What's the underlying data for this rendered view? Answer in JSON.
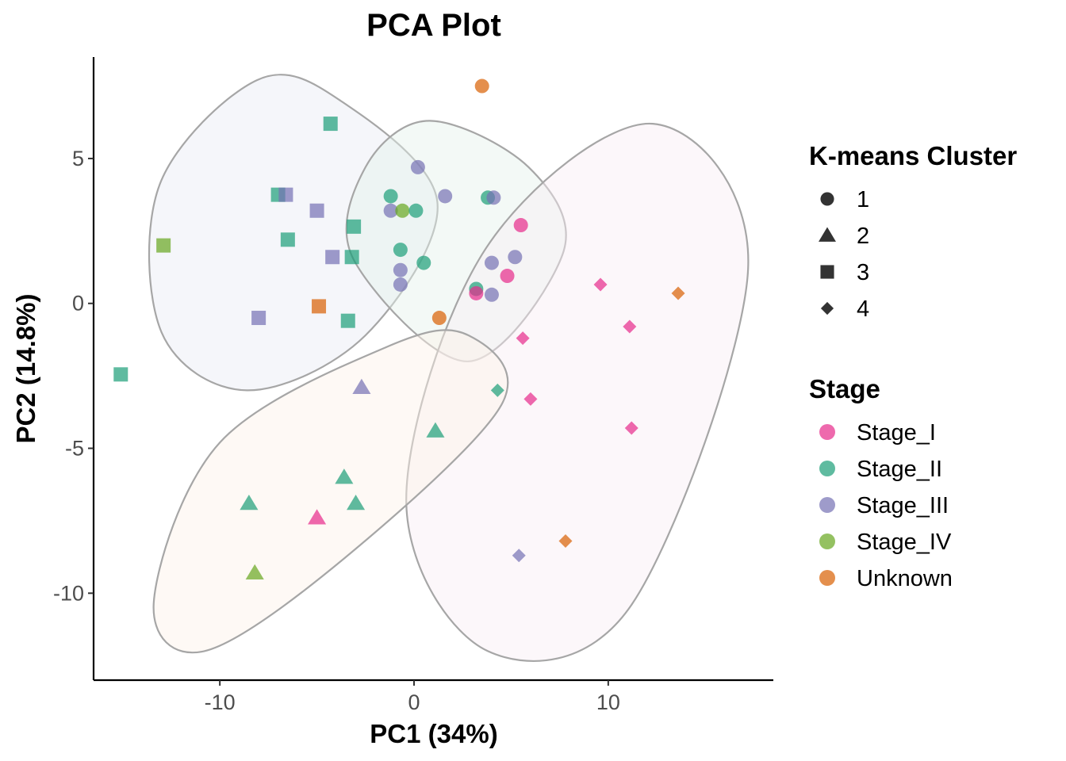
{
  "chart_data": {
    "type": "scatter",
    "title": "PCA Plot",
    "xlabel": "PC1 (34%)",
    "ylabel": "PC2 (14.8%)",
    "xlim": [
      -16.5,
      18.5
    ],
    "ylim": [
      -13,
      8.5
    ],
    "xticks": [
      {
        "value": -10,
        "label": "-10"
      },
      {
        "value": 0,
        "label": "0"
      },
      {
        "value": 10,
        "label": "10"
      }
    ],
    "yticks": [
      {
        "value": 5,
        "label": "5"
      },
      {
        "value": 0,
        "label": "0"
      },
      {
        "value": -5,
        "label": "-5"
      },
      {
        "value": -10,
        "label": "-10"
      }
    ],
    "grid": false,
    "legend_position": "right",
    "shape_legend": {
      "title": "K-means Cluster",
      "items": [
        {
          "label": "1",
          "shape": "circle"
        },
        {
          "label": "2",
          "shape": "triangle"
        },
        {
          "label": "3",
          "shape": "square"
        },
        {
          "label": "4",
          "shape": "diamond"
        }
      ]
    },
    "color_legend": {
      "title": "Stage",
      "items": [
        {
          "label": "Stage_I",
          "color": "#e7298a"
        },
        {
          "label": "Stage_II",
          "color": "#1b9e77"
        },
        {
          "label": "Stage_III",
          "color": "#7570b3"
        },
        {
          "label": "Stage_IV",
          "color": "#66a61e"
        },
        {
          "label": "Unknown",
          "color": "#d95f02"
        }
      ]
    },
    "ellipses": [
      {
        "cluster": "3",
        "fill": "#e9ecf5",
        "points": [
          [
            -8.6,
            -3.0
          ],
          [
            -13.0,
            -1.0
          ],
          [
            -13.1,
            4.1
          ],
          [
            -8.1,
            7.7
          ],
          [
            -3.8,
            7.0
          ],
          [
            1.2,
            3.5
          ],
          [
            -2.5,
            -1.1
          ]
        ]
      },
      {
        "cluster": "1",
        "fill": "#e4f1ec",
        "points": [
          [
            2.8,
            -2.0
          ],
          [
            -3.1,
            1.5
          ],
          [
            -2.5,
            4.7
          ],
          [
            0.8,
            6.3
          ],
          [
            5.9,
            4.7
          ],
          [
            7.7,
            1.8
          ]
        ]
      },
      {
        "cluster": "4",
        "fill": "#f8eef5",
        "points": [
          [
            3.8,
            -12.0
          ],
          [
            -0.4,
            -6.8
          ],
          [
            3.7,
            1.9
          ],
          [
            12.3,
            6.2
          ],
          [
            17.2,
            1.2
          ],
          [
            11.2,
            -10.4
          ]
        ]
      },
      {
        "cluster": "2",
        "fill": "#fdf1e8",
        "points": [
          [
            -10.8,
            -12.0
          ],
          [
            -13.4,
            -10.3
          ],
          [
            -10.0,
            -4.8
          ],
          [
            -1.4,
            -1.5
          ],
          [
            2.8,
            -1.1
          ],
          [
            4.5,
            -3.5
          ],
          [
            -3.6,
            -8.8
          ]
        ]
      }
    ],
    "series": [
      {
        "cluster": "1",
        "shape": "circle",
        "points": [
          {
            "x": 3.5,
            "y": 7.5,
            "stage": "Unknown"
          },
          {
            "x": 0.2,
            "y": 4.7,
            "stage": "Stage_III"
          },
          {
            "x": -1.2,
            "y": 3.7,
            "stage": "Stage_II"
          },
          {
            "x": 1.6,
            "y": 3.7,
            "stage": "Stage_III"
          },
          {
            "x": 3.8,
            "y": 3.65,
            "stage": "Stage_II"
          },
          {
            "x": 4.1,
            "y": 3.65,
            "stage": "Stage_III"
          },
          {
            "x": -1.2,
            "y": 3.2,
            "stage": "Stage_III"
          },
          {
            "x": -0.6,
            "y": 3.2,
            "stage": "Stage_IV"
          },
          {
            "x": 0.1,
            "y": 3.2,
            "stage": "Stage_II"
          },
          {
            "x": 5.5,
            "y": 2.7,
            "stage": "Stage_I"
          },
          {
            "x": -0.7,
            "y": 1.85,
            "stage": "Stage_II"
          },
          {
            "x": 5.2,
            "y": 1.6,
            "stage": "Stage_III"
          },
          {
            "x": 0.5,
            "y": 1.4,
            "stage": "Stage_II"
          },
          {
            "x": 4.0,
            "y": 1.4,
            "stage": "Stage_III"
          },
          {
            "x": -0.7,
            "y": 1.15,
            "stage": "Stage_III"
          },
          {
            "x": 4.8,
            "y": 0.95,
            "stage": "Stage_I"
          },
          {
            "x": -0.7,
            "y": 0.65,
            "stage": "Stage_III"
          },
          {
            "x": 3.2,
            "y": 0.5,
            "stage": "Stage_II"
          },
          {
            "x": 3.2,
            "y": 0.35,
            "stage": "Stage_I"
          },
          {
            "x": 4.0,
            "y": 0.3,
            "stage": "Stage_III"
          },
          {
            "x": 1.3,
            "y": -0.5,
            "stage": "Unknown"
          }
        ]
      },
      {
        "cluster": "2",
        "shape": "triangle",
        "points": [
          {
            "x": -2.7,
            "y": -2.9,
            "stage": "Stage_III"
          },
          {
            "x": 1.1,
            "y": -4.4,
            "stage": "Stage_II"
          },
          {
            "x": -3.6,
            "y": -6.0,
            "stage": "Stage_II"
          },
          {
            "x": -8.5,
            "y": -6.9,
            "stage": "Stage_II"
          },
          {
            "x": -3.0,
            "y": -6.9,
            "stage": "Stage_II"
          },
          {
            "x": -5.0,
            "y": -7.4,
            "stage": "Stage_I"
          },
          {
            "x": -8.2,
            "y": -9.3,
            "stage": "Stage_IV"
          }
        ]
      },
      {
        "cluster": "3",
        "shape": "square",
        "points": [
          {
            "x": -4.3,
            "y": 6.2,
            "stage": "Stage_II"
          },
          {
            "x": -7.0,
            "y": 3.75,
            "stage": "Stage_II"
          },
          {
            "x": -6.6,
            "y": 3.75,
            "stage": "Stage_III"
          },
          {
            "x": -5.0,
            "y": 3.2,
            "stage": "Stage_III"
          },
          {
            "x": -3.1,
            "y": 2.65,
            "stage": "Stage_II"
          },
          {
            "x": -6.5,
            "y": 2.2,
            "stage": "Stage_II"
          },
          {
            "x": -12.9,
            "y": 2.0,
            "stage": "Stage_IV"
          },
          {
            "x": -4.2,
            "y": 1.6,
            "stage": "Stage_III"
          },
          {
            "x": -3.2,
            "y": 1.6,
            "stage": "Stage_II"
          },
          {
            "x": -4.9,
            "y": -0.1,
            "stage": "Unknown"
          },
          {
            "x": -8.0,
            "y": -0.5,
            "stage": "Stage_III"
          },
          {
            "x": -3.4,
            "y": -0.6,
            "stage": "Stage_II"
          },
          {
            "x": -15.1,
            "y": -2.45,
            "stage": "Stage_II"
          }
        ]
      },
      {
        "cluster": "4",
        "shape": "diamond",
        "points": [
          {
            "x": 9.6,
            "y": 0.65,
            "stage": "Stage_I"
          },
          {
            "x": 13.6,
            "y": 0.35,
            "stage": "Unknown"
          },
          {
            "x": 11.1,
            "y": -0.8,
            "stage": "Stage_I"
          },
          {
            "x": 5.6,
            "y": -1.2,
            "stage": "Stage_I"
          },
          {
            "x": 4.3,
            "y": -3.0,
            "stage": "Stage_II"
          },
          {
            "x": 6.0,
            "y": -3.3,
            "stage": "Stage_I"
          },
          {
            "x": 11.2,
            "y": -4.3,
            "stage": "Stage_I"
          },
          {
            "x": 7.8,
            "y": -8.2,
            "stage": "Unknown"
          },
          {
            "x": 5.4,
            "y": -8.7,
            "stage": "Stage_III"
          }
        ]
      }
    ]
  }
}
